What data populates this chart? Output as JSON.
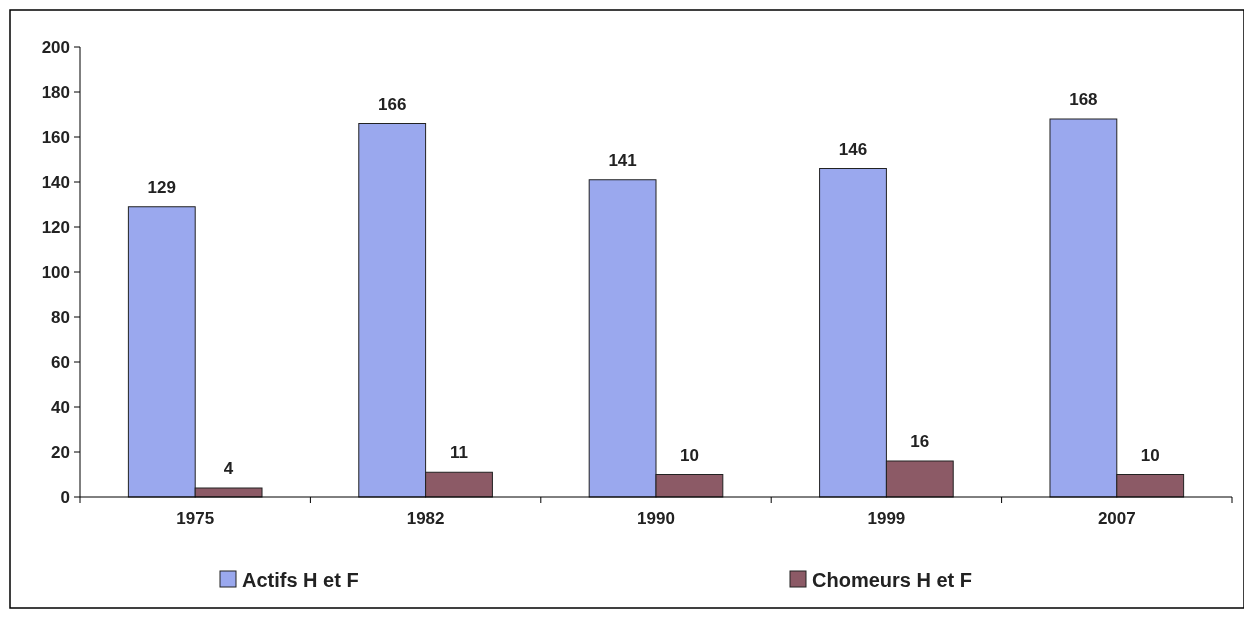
{
  "chart_data": {
    "type": "bar",
    "categories": [
      "1975",
      "1982",
      "1990",
      "1999",
      "2007"
    ],
    "series": [
      {
        "name": "Actifs H et F",
        "color": "#9aa8ee",
        "values": [
          129,
          166,
          141,
          146,
          168
        ]
      },
      {
        "name": "Chomeurs H et F",
        "color": "#8c5a66",
        "values": [
          4,
          11,
          10,
          16,
          10
        ]
      }
    ],
    "ylim": [
      0,
      200
    ],
    "yticks": [
      0,
      20,
      40,
      60,
      80,
      100,
      120,
      140,
      160,
      180,
      200
    ],
    "data_labels": true,
    "legend": "bottom",
    "grid": false
  }
}
